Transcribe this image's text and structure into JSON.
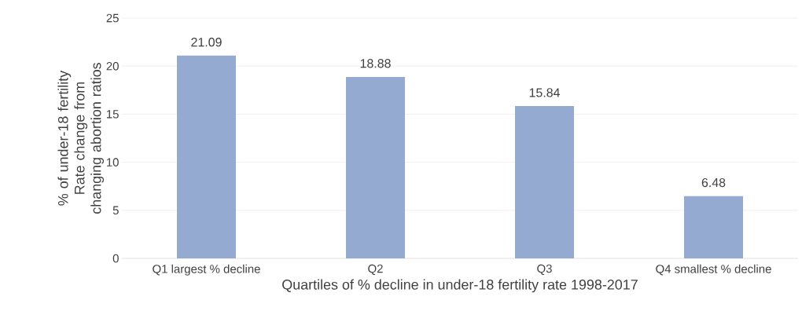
{
  "chart_data": {
    "type": "bar",
    "xlabel": "Quartiles of % decline in under-18 fertility rate 1998-2017",
    "ylabel": "% of under-18 fertility Rate change from changing abortion ratios",
    "categories": [
      "Q1 largest % decline",
      "Q2",
      "Q3",
      "Q4 smallest % decline"
    ],
    "values": [
      21.09,
      18.88,
      15.84,
      6.48
    ],
    "color": "#94aad1",
    "ylim": [
      0,
      25
    ],
    "yticks": [
      0,
      5,
      10,
      15,
      20,
      25
    ],
    "grid": "y",
    "data_labels": true
  }
}
